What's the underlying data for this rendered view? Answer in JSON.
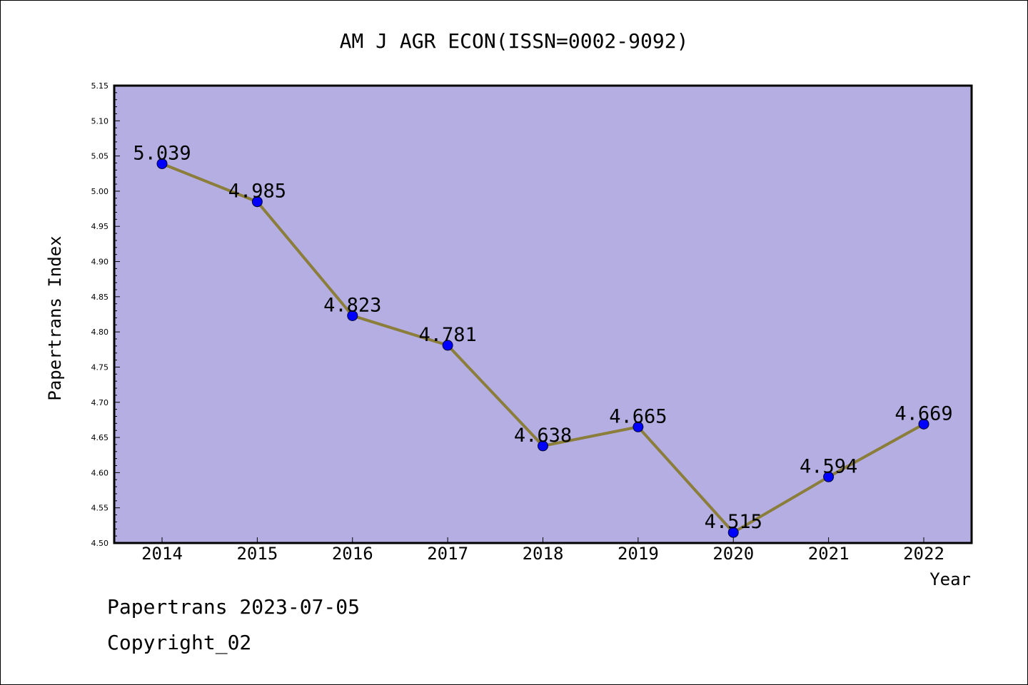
{
  "chart_data": {
    "type": "line",
    "title": "AM J AGR ECON(ISSN=0002-9092)",
    "xlabel": "Year",
    "ylabel": "Papertrans Index",
    "categories": [
      "2014",
      "2015",
      "2016",
      "2017",
      "2018",
      "2019",
      "2020",
      "2021",
      "2022"
    ],
    "series": [
      {
        "values": [
          5.039,
          4.985,
          4.823,
          4.781,
          4.638,
          4.665,
          4.515,
          4.594,
          4.669
        ],
        "labels": [
          "5.039",
          "4.985",
          "4.823",
          "4.781",
          "4.638",
          "4.665",
          "4.515",
          "4.594",
          "4.669"
        ],
        "line_color": "#8b7d3a",
        "marker_color": "#0000ff"
      }
    ],
    "ylim": [
      4.5,
      5.15
    ],
    "yticks": [
      "4.50",
      "4.55",
      "4.60",
      "4.65",
      "4.70",
      "4.75",
      "4.80",
      "4.85",
      "4.90",
      "4.95",
      "5.00",
      "5.05",
      "5.10",
      "5.15"
    ],
    "plot_background": "#b4aee2",
    "grid": false
  },
  "footer": {
    "line1": "Papertrans 2023-07-05",
    "line2": "Copyright_02"
  }
}
